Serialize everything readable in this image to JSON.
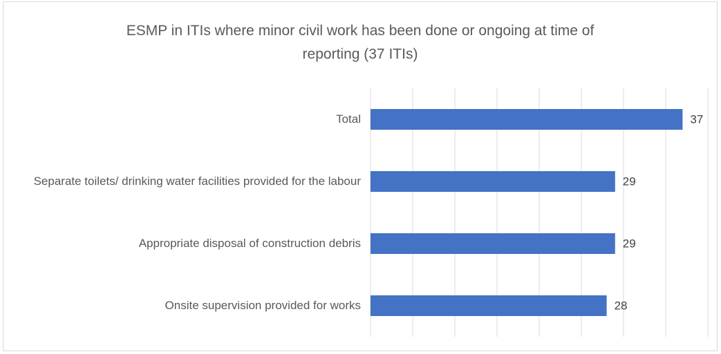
{
  "chart_data": {
    "type": "bar",
    "orientation": "horizontal",
    "title": "ESMP in ITIs where minor civil work has been done or ongoing at time of reporting (37 ITIs)",
    "categories": [
      "Total",
      "Separate toilets/ drinking water facilities provided for the labour",
      "Appropriate disposal of construction debris",
      "Onsite supervision provided for works"
    ],
    "values": [
      37,
      29,
      29,
      28
    ],
    "color": "#4472c4",
    "xlim": [
      0,
      40
    ],
    "xticks": [
      0,
      5,
      10,
      15,
      20,
      25,
      30,
      35,
      40
    ],
    "grid": true
  }
}
